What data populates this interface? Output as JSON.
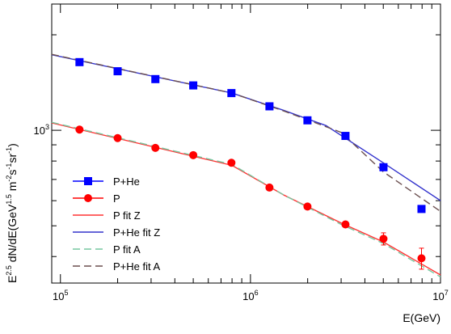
{
  "chart_data": {
    "type": "scatter",
    "title": "",
    "xlabel": "E(GeV)",
    "ylabel_parts": {
      "base": "E",
      "exp": "2.5",
      "mid": " dN/dE(GeV",
      "exp2": "1.5",
      "units": " m",
      "exp3": "-2",
      "s": "s",
      "exp4": "-1",
      "sr": "sr",
      "exp5": "-1",
      "close": ")"
    },
    "xscale": "log",
    "yscale": "log",
    "xlim": [
      90000,
      10000000
    ],
    "ylim": [
      330,
      2500
    ],
    "x_ticks": [
      {
        "value": 100000,
        "base": "10",
        "exp": "5"
      },
      {
        "value": 1000000,
        "base": "10",
        "exp": "6"
      },
      {
        "value": 10000000,
        "base": "10",
        "exp": "7"
      }
    ],
    "y_ticks": [
      {
        "value": 1000,
        "base": "10",
        "exp": "3"
      }
    ],
    "grid": false,
    "legend_position": "bottom-left",
    "series": [
      {
        "name": "P+He",
        "kind": "points",
        "marker": "square",
        "color": "#0000ff",
        "x": [
          126000,
          200000,
          316000,
          500000,
          794000,
          1259000,
          1995000,
          3162000,
          5012000,
          7943000
        ],
        "y": [
          1640,
          1535,
          1450,
          1385,
          1310,
          1190,
          1075,
          960,
          765,
          565
        ]
      },
      {
        "name": "P",
        "kind": "points",
        "marker": "circle",
        "color": "#ff0000",
        "x": [
          126000,
          200000,
          316000,
          500000,
          794000,
          1259000,
          1995000,
          3162000,
          5012000,
          7943000
        ],
        "y": [
          1005,
          945,
          880,
          835,
          790,
          660,
          575,
          505,
          455,
          395
        ],
        "yerr": [
          0,
          0,
          0,
          0,
          0,
          0,
          0,
          8,
          20,
          30
        ]
      },
      {
        "name": "P fit Z",
        "kind": "line",
        "dash": "solid",
        "color": "#ff3333",
        "x": [
          90000,
          800000,
          1500000,
          3000000,
          5000000,
          10000000
        ],
        "y": [
          1055,
          775,
          625,
          510,
          445,
          350
        ]
      },
      {
        "name": "P+He fit Z",
        "kind": "line",
        "dash": "solid",
        "color": "#3333cc",
        "x": [
          90000,
          800000,
          1500000,
          2500000,
          5000000,
          10000000
        ],
        "y": [
          1730,
          1310,
          1155,
          1035,
          790,
          600
        ]
      },
      {
        "name": "P fit A",
        "kind": "line",
        "dash": "dashed",
        "color": "#77c7a0",
        "x": [
          90000,
          800000,
          1500000,
          3000000,
          5000000,
          10000000
        ],
        "y": [
          1060,
          780,
          625,
          505,
          440,
          345
        ]
      },
      {
        "name": "P+He fit A",
        "kind": "line",
        "dash": "dashed",
        "color": "#6b4f4f",
        "x": [
          90000,
          800000,
          1500000,
          3000000,
          5000000,
          10000000
        ],
        "y": [
          1735,
          1310,
          1150,
          985,
          740,
          555
        ]
      }
    ]
  }
}
